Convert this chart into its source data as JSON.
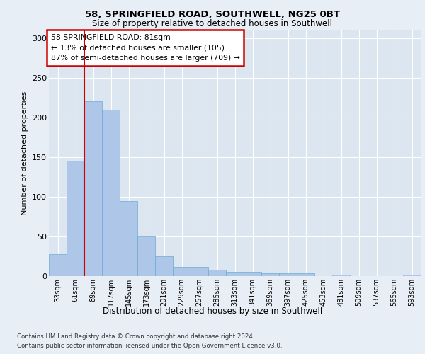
{
  "title1": "58, SPRINGFIELD ROAD, SOUTHWELL, NG25 0BT",
  "title2": "Size of property relative to detached houses in Southwell",
  "xlabel": "Distribution of detached houses by size in Southwell",
  "ylabel": "Number of detached properties",
  "categories": [
    "33sqm",
    "61sqm",
    "89sqm",
    "117sqm",
    "145sqm",
    "173sqm",
    "201sqm",
    "229sqm",
    "257sqm",
    "285sqm",
    "313sqm",
    "341sqm",
    "369sqm",
    "397sqm",
    "425sqm",
    "453sqm",
    "481sqm",
    "509sqm",
    "537sqm",
    "565sqm",
    "593sqm"
  ],
  "values": [
    28,
    145,
    220,
    210,
    95,
    50,
    25,
    12,
    12,
    8,
    5,
    5,
    4,
    4,
    4,
    0,
    2,
    0,
    0,
    0,
    2
  ],
  "bar_color": "#aec6e8",
  "bar_edge_color": "#6aabd2",
  "vline_color": "#cc0000",
  "vline_pos": 1.5,
  "annotation_text": "58 SPRINGFIELD ROAD: 81sqm\n← 13% of detached houses are smaller (105)\n87% of semi-detached houses are larger (709) →",
  "annotation_box_color": "#ffffff",
  "annotation_box_edge": "#cc0000",
  "background_color": "#e8eef5",
  "plot_bg_color": "#dce6f0",
  "ylim": [
    0,
    310
  ],
  "yticks": [
    0,
    50,
    100,
    150,
    200,
    250,
    300
  ],
  "footer1": "Contains HM Land Registry data © Crown copyright and database right 2024.",
  "footer2": "Contains public sector information licensed under the Open Government Licence v3.0."
}
